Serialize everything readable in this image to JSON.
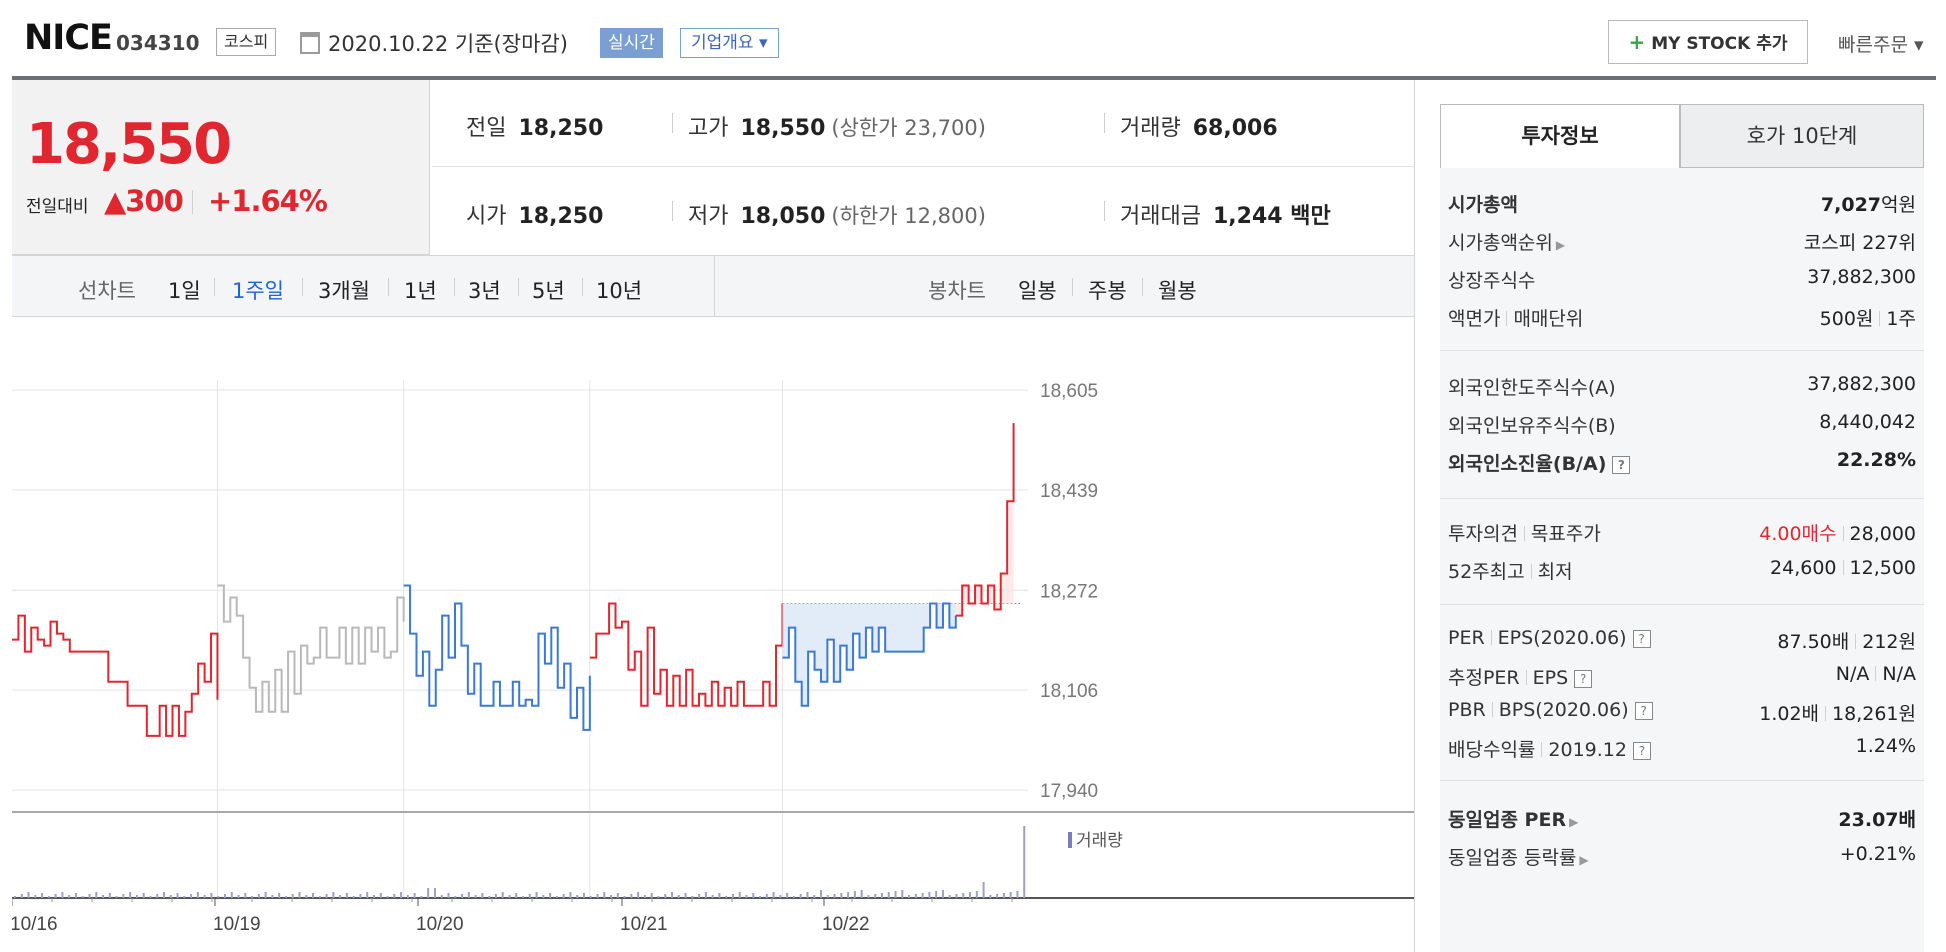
{
  "header": {
    "name": "NICE",
    "code": "034310",
    "market": "코스피",
    "base_date": "2020.10.22 기준(장마감)",
    "realtime_label": "실시간",
    "company_label": "기업개요 ▾",
    "mystock_label": "MY STOCK 추가",
    "quick_order": "빠른주문 ▾"
  },
  "price": {
    "now": "18,550",
    "compare_label": "전일대비",
    "change": "▲300",
    "rate": "+1.64%"
  },
  "stats": {
    "prev_close_label": "전일",
    "prev_close": "18,250",
    "high_label": "고가",
    "high": "18,550",
    "upper_limit": "(상한가 23,700)",
    "volume_label": "거래량",
    "volume": "68,006",
    "open_label": "시가",
    "open": "18,250",
    "low_label": "저가",
    "low": "18,050",
    "lower_limit": "(하한가 12,800)",
    "amount_label": "거래대금",
    "amount": "1,244 백만"
  },
  "tabs": {
    "line_label": "선차트",
    "line": [
      "1일",
      "1주일",
      "3개월",
      "1년",
      "3년",
      "5년",
      "10년"
    ],
    "active": "1주일",
    "candle_label": "봉차트",
    "candle": [
      "일봉",
      "주봉",
      "월봉"
    ]
  },
  "chart_data": {
    "type": "line",
    "x_labels": [
      "10/16",
      "10/19",
      "10/20",
      "10/21",
      "10/22"
    ],
    "y_ticks": [
      18605,
      18439,
      18272,
      18106,
      17940
    ],
    "ylim": [
      17940,
      18605
    ],
    "prev_close_line": 18250,
    "volume_label": "거래량",
    "series": [
      {
        "color": "#e0262f",
        "values": [
          18190,
          18230,
          18170,
          18210,
          18190,
          18180,
          18220,
          18200,
          18190,
          18170,
          18170,
          18170,
          18170,
          18170,
          18170,
          18120,
          18120,
          18120,
          18080,
          18080,
          18080,
          18030,
          18030,
          18080,
          18030,
          18080,
          18030,
          18070,
          18100,
          18150,
          18120,
          18200,
          18090
        ]
      },
      {
        "color": "#b9b9b9",
        "values": [
          18280,
          18220,
          18260,
          18230,
          18160,
          18110,
          18070,
          18120,
          18070,
          18140,
          18070,
          18170,
          18100,
          18180,
          18150,
          18160,
          18210,
          18160,
          18160,
          18210,
          18150,
          18210,
          18150,
          18210,
          18170,
          18210,
          18160,
          18170,
          18260,
          18220
        ]
      },
      {
        "color": "#3a79d4",
        "values": [
          18280,
          18200,
          18130,
          18170,
          18080,
          18140,
          18230,
          18160,
          18250,
          18180,
          18100,
          18150,
          18080,
          18080,
          18120,
          18080,
          18080,
          18120,
          18080,
          18090,
          18080,
          18200,
          18150,
          18210,
          18110,
          18150,
          18060,
          18110,
          18040,
          18130
        ]
      },
      {
        "color": "#e0262f",
        "values": [
          18160,
          18200,
          18200,
          18250,
          18210,
          18220,
          18140,
          18170,
          18080,
          18210,
          18100,
          18140,
          18080,
          18130,
          18080,
          18140,
          18080,
          18100,
          18080,
          18120,
          18080,
          18110,
          18080,
          18120,
          18080,
          18080,
          18080,
          18120,
          18080,
          18180,
          18250
        ]
      },
      {
        "color": "#3a79d4",
        "values": [
          18160,
          18210,
          18120,
          18080,
          18170,
          18140,
          18120,
          18190,
          18120,
          18180,
          18140,
          18200,
          18160,
          18210,
          18170,
          18210,
          18170,
          18170,
          18170,
          18170,
          18170,
          18170,
          18210,
          18250,
          18210,
          18250,
          18210,
          18230
        ]
      },
      {
        "color": "#e0262f",
        "values": [
          18230,
          18280,
          18250,
          18280,
          18250,
          18280,
          18240,
          18300,
          18420,
          18550
        ]
      }
    ]
  },
  "panel": {
    "tab_invest": "투자정보",
    "tab_order": "호가 10단계",
    "mcap_label": "시가총액",
    "mcap_num": "7,027",
    "mcap_unit": "억원",
    "mcap_rank_label": "시가총액순위",
    "mcap_rank": "코스피 227위",
    "shares_label": "상장주식수",
    "shares": "37,882,300",
    "face_label": "액면가",
    "trade_unit_label": "매매단위",
    "face": "500원",
    "trade_unit": "1주",
    "foreign_limit_label": "외국인한도주식수(A)",
    "foreign_limit": "37,882,300",
    "foreign_hold_label": "외국인보유주식수(B)",
    "foreign_hold": "8,440,042",
    "foreign_ratio_label": "외국인소진율(B/A)",
    "foreign_ratio": "22.28%",
    "opinion_label": "투자의견",
    "target_label": "목표주가",
    "opinion": "4.00매수",
    "target": "28,000",
    "w52_label": "52주최고",
    "low_label": "최저",
    "w52_high": "24,600",
    "w52_low": "12,500",
    "per_label": "PER",
    "eps_label": "EPS(2020.06)",
    "per": "87.50배",
    "eps": "212원",
    "est_per_label": "추정PER",
    "est_eps_label": "EPS",
    "est_per": "N/A",
    "est_eps": "N/A",
    "pbr_label": "PBR",
    "bps_label": "BPS(2020.06)",
    "pbr": "1.02배",
    "bps": "18,261원",
    "div_label": "배당수익률",
    "div_year": "2019.12",
    "div": "1.24%",
    "ind_per_label": "동일업종 PER",
    "ind_per": "23.07배",
    "ind_rate_label": "동일업종 등락률",
    "ind_rate": "+0.21%"
  }
}
